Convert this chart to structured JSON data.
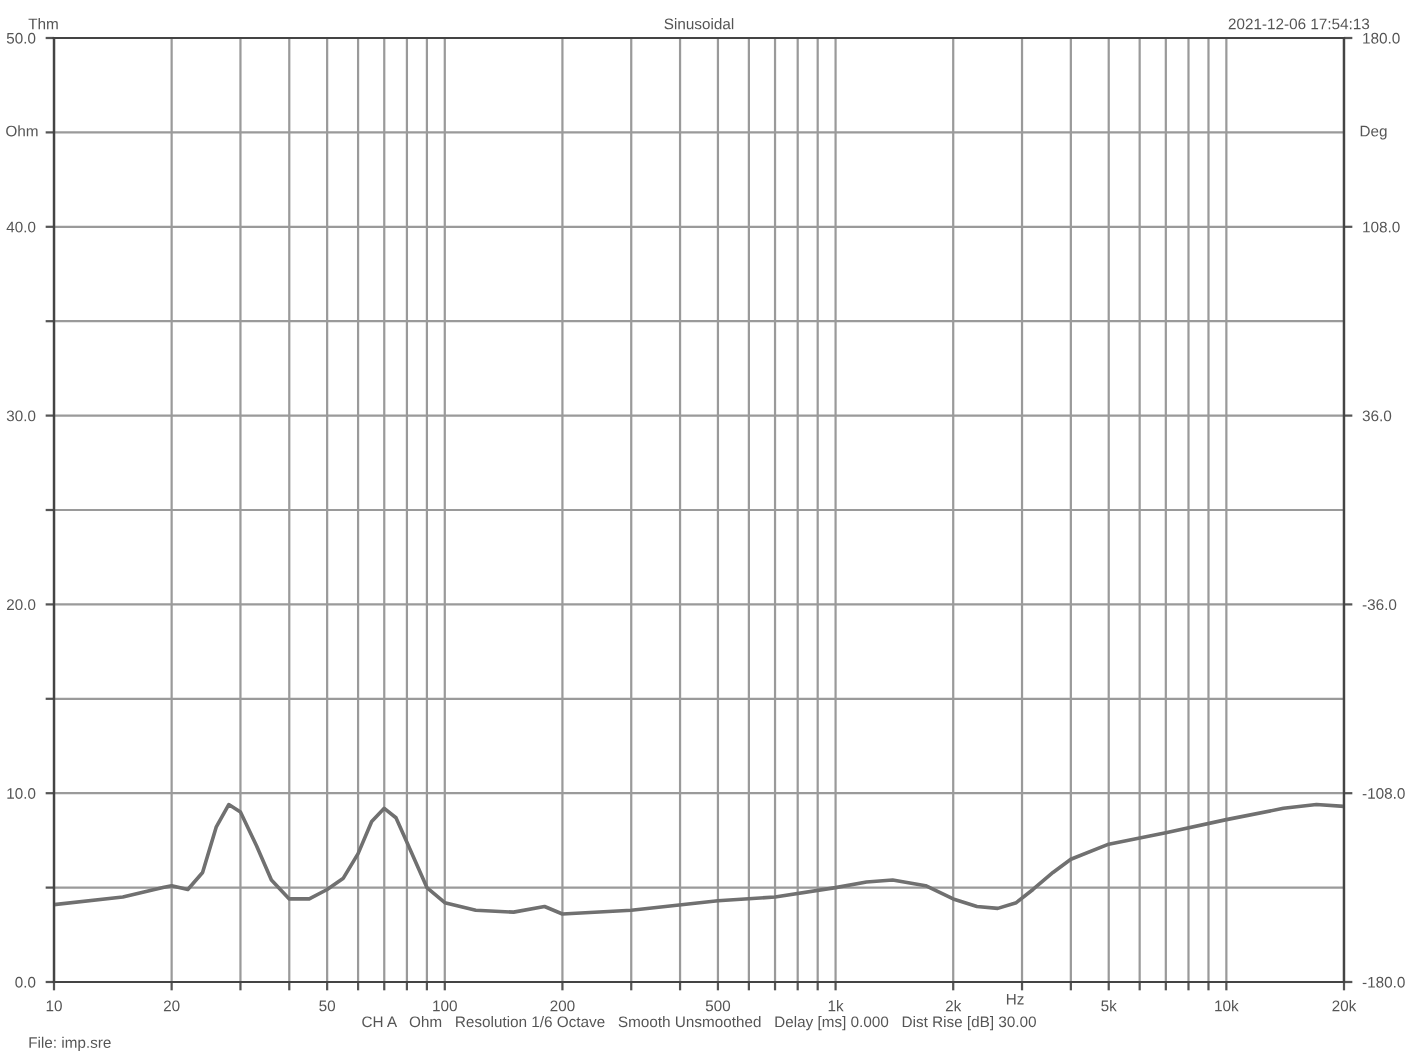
{
  "chart_data": {
    "type": "line",
    "title": "Sinusoidal",
    "subtitle": "2021-12-06 17:54:13",
    "xlabel": "Hz",
    "ylabel": "Ohm",
    "y2label": "Deg",
    "annotations": [
      "Thm",
      "CH A   Ohm   Resolution 1/6 Octave   Smooth Unsmoothed   Delay [ms] 0.000   Dist Rise [dB] 30.00",
      "File: imp.sre"
    ],
    "log": "x",
    "grid": true,
    "legend": false,
    "marker": "none",
    "line_style": "solid",
    "xlim": [
      10,
      20000
    ],
    "ylim": [
      0,
      50
    ],
    "y2lim": [
      -180,
      180
    ],
    "xticks": [
      10,
      20,
      {
        "value": 30,
        "label": null
      },
      {
        "value": 40,
        "label": null
      },
      50,
      {
        "value": 60,
        "label": null
      },
      {
        "value": 70,
        "label": null
      },
      {
        "value": 80,
        "label": null
      },
      {
        "value": 90,
        "label": null
      },
      100,
      200,
      {
        "value": 300,
        "label": null
      },
      {
        "value": 400,
        "label": null
      },
      500,
      {
        "value": 600,
        "label": null
      },
      {
        "value": 700,
        "label": null
      },
      {
        "value": 800,
        "label": null
      },
      {
        "value": 900,
        "label": null
      },
      {
        "value": 1000,
        "label": "1k"
      },
      {
        "value": 2000,
        "label": "2k"
      },
      {
        "value": 3000,
        "label": null
      },
      {
        "value": 4000,
        "label": null
      },
      {
        "value": 5000,
        "label": "5k"
      },
      {
        "value": 6000,
        "label": null
      },
      {
        "value": 7000,
        "label": null
      },
      {
        "value": 8000,
        "label": null
      },
      {
        "value": 9000,
        "label": null
      },
      {
        "value": 10000,
        "label": "10k"
      },
      {
        "value": 20000,
        "label": "20k"
      }
    ],
    "yticks": [
      {
        "value": 0,
        "label": "0.0"
      },
      {
        "value": 5,
        "label": null
      },
      {
        "value": 10,
        "label": "10.0"
      },
      {
        "value": 15,
        "label": null
      },
      {
        "value": 20,
        "label": "20.0"
      },
      {
        "value": 25,
        "label": null
      },
      {
        "value": 30,
        "label": "30.0"
      },
      {
        "value": 35,
        "label": null
      },
      {
        "value": 40,
        "label": "40.0"
      },
      {
        "value": 45,
        "label": null
      },
      {
        "value": 50,
        "label": "50.0"
      }
    ],
    "y2ticks": [
      {
        "value": -180,
        "label": "-180.0"
      },
      {
        "value": -108,
        "label": "-108.0"
      },
      {
        "value": -36,
        "label": "-36.0"
      },
      {
        "value": 36,
        "label": "36.0"
      },
      {
        "value": 108,
        "label": "108.0"
      },
      {
        "value": 180,
        "label": "180.0"
      }
    ],
    "series": [
      {
        "color": "#707070",
        "x": [
          10,
          15,
          19,
          20,
          22,
          24,
          26,
          28,
          30,
          33,
          36,
          40,
          45,
          50,
          55,
          60,
          65,
          70,
          75,
          80,
          90,
          100,
          120,
          150,
          180,
          200,
          300,
          500,
          700,
          1000,
          1200,
          1400,
          1700,
          2000,
          2300,
          2600,
          2900,
          3200,
          3600,
          4000,
          5000,
          7000,
          10000,
          14000,
          17000,
          20000
        ],
        "values": [
          4.1,
          4.5,
          5.0,
          5.1,
          4.9,
          5.8,
          8.2,
          9.4,
          9.0,
          7.2,
          5.4,
          4.4,
          4.4,
          4.9,
          5.5,
          6.8,
          8.5,
          9.2,
          8.7,
          7.4,
          5.0,
          4.2,
          3.8,
          3.7,
          4.0,
          3.6,
          3.8,
          4.3,
          4.5,
          5.0,
          5.3,
          5.4,
          5.1,
          4.4,
          4.0,
          3.9,
          4.2,
          4.9,
          5.8,
          6.5,
          7.3,
          7.9,
          8.6,
          9.2,
          9.4,
          9.3
        ]
      }
    ]
  }
}
